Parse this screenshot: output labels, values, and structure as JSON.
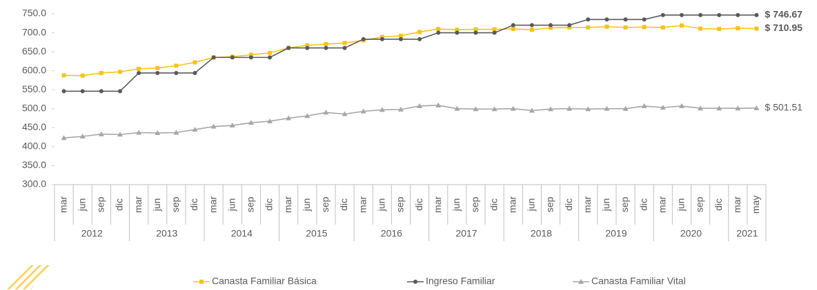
{
  "chart_data": {
    "type": "line",
    "groups": [
      {
        "label": "2012",
        "categories": [
          "mar",
          "jun",
          "sep",
          "dic"
        ]
      },
      {
        "label": "2013",
        "categories": [
          "mar",
          "jun",
          "sep",
          "dic"
        ]
      },
      {
        "label": "2014",
        "categories": [
          "mar",
          "jun",
          "sep",
          "dic"
        ]
      },
      {
        "label": "2015",
        "categories": [
          "mar",
          "jun",
          "sep",
          "dic"
        ]
      },
      {
        "label": "2016",
        "categories": [
          "mar",
          "jun",
          "sep",
          "dic"
        ]
      },
      {
        "label": "2017",
        "categories": [
          "mar",
          "jun",
          "sep",
          "dic"
        ]
      },
      {
        "label": "2018",
        "categories": [
          "mar",
          "jun",
          "sep",
          "dic"
        ]
      },
      {
        "label": "2019",
        "categories": [
          "mar",
          "jun",
          "sep",
          "dic"
        ]
      },
      {
        "label": "2020",
        "categories": [
          "mar",
          "jun",
          "sep",
          "dic"
        ]
      },
      {
        "label": "2021",
        "categories": [
          "mar",
          "may"
        ]
      }
    ],
    "series": [
      {
        "name": "Canasta Familiar Básica",
        "color": "#f7c31a",
        "marker": "square",
        "label_bold": true,
        "values": [
          588,
          587,
          594,
          597,
          605,
          607,
          613,
          622,
          635,
          637,
          642,
          647,
          660,
          667,
          670,
          673,
          680,
          689,
          692,
          702,
          710,
          708,
          709,
          709,
          710,
          708,
          713,
          714,
          714,
          716,
          714,
          715,
          714,
          719,
          711,
          710,
          712,
          710.95
        ],
        "value_labels": [
          null,
          null,
          null,
          null,
          null,
          null,
          null,
          null,
          null,
          null,
          null,
          null,
          null,
          null,
          null,
          null,
          null,
          null,
          null,
          null,
          null,
          null,
          null,
          null,
          null,
          null,
          null,
          null,
          null,
          null,
          null,
          null,
          null,
          null,
          null,
          null,
          null,
          "$ 710.95"
        ]
      },
      {
        "name": "Ingreso Familiar",
        "color": "#595959",
        "marker": "circle",
        "label_bold": true,
        "values": [
          546,
          546,
          546,
          546,
          594,
          594,
          594,
          594,
          635,
          635,
          635,
          635,
          660,
          660,
          660,
          660,
          683,
          683,
          683,
          683,
          700,
          700,
          700,
          700,
          720,
          720,
          720,
          720,
          735,
          735,
          735,
          735,
          746.67,
          746.67,
          746.67,
          746.67,
          746.67,
          746.67
        ],
        "value_labels": [
          null,
          null,
          null,
          null,
          null,
          null,
          null,
          null,
          null,
          null,
          null,
          null,
          null,
          null,
          null,
          null,
          null,
          null,
          null,
          null,
          null,
          null,
          null,
          null,
          null,
          null,
          null,
          null,
          null,
          null,
          null,
          null,
          null,
          null,
          null,
          null,
          null,
          "$ 746.67"
        ]
      },
      {
        "name": "Canasta Familiar Vital",
        "color": "#a6a6a6",
        "marker": "triangle",
        "label_bold": false,
        "values": [
          423,
          427,
          433,
          432,
          437,
          436,
          437,
          445,
          453,
          456,
          463,
          467,
          475,
          481,
          490,
          486,
          493,
          497,
          498,
          507,
          509,
          500,
          499,
          499,
          500,
          495,
          499,
          500,
          499,
          500,
          500,
          507,
          503,
          507,
          501,
          501,
          501,
          501.51
        ],
        "value_labels": [
          null,
          null,
          null,
          null,
          null,
          null,
          null,
          null,
          null,
          null,
          null,
          null,
          null,
          null,
          null,
          null,
          null,
          null,
          null,
          null,
          null,
          null,
          null,
          null,
          null,
          null,
          null,
          null,
          null,
          null,
          null,
          null,
          null,
          null,
          null,
          null,
          null,
          "$ 501.51"
        ]
      }
    ],
    "ylim": [
      300,
      750
    ],
    "yticks": [
      {
        "value": 300,
        "label": "300.0"
      },
      {
        "value": 350,
        "label": "350.0"
      },
      {
        "value": 400,
        "label": "400.0"
      },
      {
        "value": 450,
        "label": "450.0"
      },
      {
        "value": 500,
        "label": "500.0"
      },
      {
        "value": 550,
        "label": "550.0"
      },
      {
        "value": 600,
        "label": "600.0"
      },
      {
        "value": 650,
        "label": "650.0"
      },
      {
        "value": 700,
        "label": "700.0"
      },
      {
        "value": 750,
        "label": "750.0"
      }
    ],
    "grid": false,
    "legend": "bottom"
  }
}
